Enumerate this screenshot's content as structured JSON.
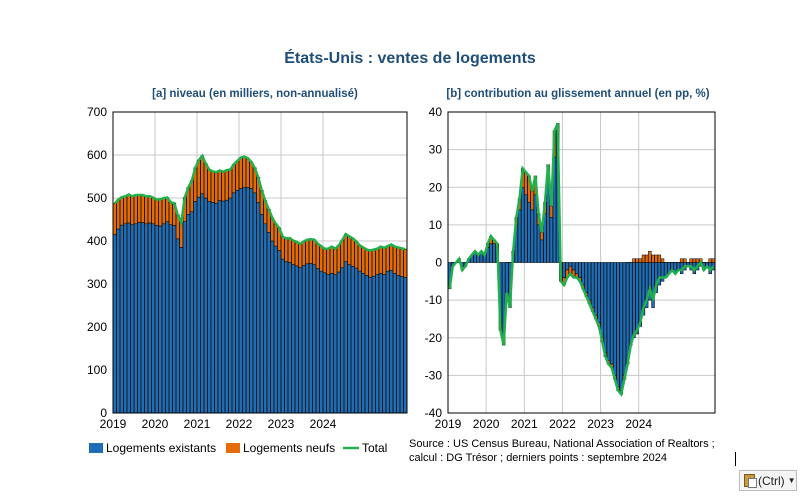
{
  "figure": {
    "title": "États-Unis : ventes de logements",
    "legend": {
      "existing": "Logements existants",
      "new": "Logements neufs",
      "total": "Total"
    },
    "source_line1": "Source : US Census Bureau, National Association of Realtors ;",
    "source_line2": "calcul : DG Trésor ; derniers points : septembre 2024",
    "colors": {
      "existing": "#1f6eb5",
      "new": "#e36c0a",
      "total": "#21b04b",
      "title": "#1f4e79"
    }
  },
  "chart_data": [
    {
      "id": "a",
      "type": "bar",
      "stacked": true,
      "title": "[a] niveau (en milliers, non-annualisé)",
      "xlabel": "",
      "ylabel": "",
      "ylim": [
        0,
        700
      ],
      "yticks": [
        "0",
        "100",
        "200",
        "300",
        "400",
        "500",
        "600",
        "700"
      ],
      "xticks": [
        "2019",
        "2020",
        "2021",
        "2022",
        "2023",
        "2024"
      ],
      "period": "2019-01 to 2024-09 (monthly)",
      "series": [
        {
          "name": "Logements existants",
          "values": [
            415,
            428,
            437,
            440,
            442,
            438,
            440,
            443,
            443,
            440,
            442,
            440,
            436,
            435,
            440,
            445,
            438,
            436,
            405,
            385,
            445,
            462,
            468,
            492,
            502,
            510,
            500,
            492,
            490,
            488,
            494,
            493,
            495,
            500,
            512,
            518,
            522,
            524,
            525,
            522,
            512,
            490,
            462,
            440,
            420,
            400,
            388,
            378,
            358,
            352,
            350,
            345,
            342,
            338,
            343,
            347,
            348,
            345,
            336,
            330,
            326,
            322,
            325,
            322,
            328,
            338,
            352,
            345,
            341,
            337,
            330,
            325,
            320,
            316,
            318,
            322,
            325,
            322,
            330,
            332,
            325,
            320,
            318,
            315
          ]
        },
        {
          "name": "Logements neufs",
          "values": [
            72,
            68,
            65,
            64,
            66,
            66,
            67,
            64,
            64,
            64,
            62,
            61,
            60,
            62,
            60,
            56,
            52,
            52,
            56,
            58,
            56,
            62,
            72,
            78,
            86,
            88,
            80,
            74,
            72,
            72,
            70,
            68,
            70,
            66,
            66,
            68,
            72,
            72,
            68,
            62,
            58,
            58,
            56,
            54,
            54,
            54,
            52,
            52,
            52,
            54,
            57,
            56,
            56,
            55,
            56,
            56,
            56,
            58,
            58,
            58,
            56,
            60,
            62,
            60,
            62,
            64,
            64,
            66,
            65,
            62,
            60,
            60,
            60,
            62,
            62,
            60,
            62,
            62,
            58,
            60,
            62,
            65,
            65,
            66
          ]
        },
        {
          "name": "Total",
          "values": [
            487,
            496,
            502,
            504,
            508,
            504,
            507,
            507,
            507,
            504,
            504,
            501,
            496,
            497,
            500,
            501,
            490,
            488,
            461,
            443,
            501,
            524,
            540,
            570,
            588,
            598,
            580,
            566,
            562,
            560,
            564,
            561,
            565,
            566,
            578,
            586,
            594,
            596,
            593,
            584,
            570,
            548,
            518,
            494,
            474,
            454,
            440,
            430,
            410,
            406,
            407,
            401,
            398,
            393,
            399,
            403,
            404,
            403,
            394,
            388,
            382,
            382,
            387,
            382,
            390,
            402,
            416,
            411,
            406,
            399,
            390,
            385,
            380,
            378,
            380,
            382,
            387,
            384,
            388,
            392,
            387,
            385,
            383,
            381
          ]
        }
      ]
    },
    {
      "id": "b",
      "type": "bar",
      "stacked": true,
      "title": "[b] contribution au glissement annuel (en pp, %)",
      "xlabel": "",
      "ylabel": "",
      "ylim": [
        -40,
        40
      ],
      "yticks": [
        "-40",
        "-30",
        "-20",
        "-10",
        "0",
        "10",
        "20",
        "30",
        "40"
      ],
      "xticks": [
        "2019",
        "2020",
        "2021",
        "2022",
        "2023",
        "2024"
      ],
      "period": "2019-01 to 2024-09 (monthly)",
      "series": [
        {
          "name": "Logements existants",
          "values": [
            -6,
            -1,
            0,
            1,
            -1,
            -1,
            1,
            2,
            3,
            2,
            3,
            2,
            4,
            5,
            5,
            4,
            -16,
            -20,
            -8,
            -12,
            2,
            10,
            14,
            20,
            18,
            16,
            14,
            18,
            10,
            6,
            13,
            22,
            12,
            28,
            35,
            -2,
            -4,
            -2,
            -1,
            -2,
            -3,
            -4,
            -6,
            -8,
            -10,
            -12,
            -14,
            -16,
            -20,
            -24,
            -26,
            -27,
            -30,
            -33,
            -34,
            -30,
            -27,
            -22,
            -20,
            -19,
            -17,
            -14,
            -12,
            -10,
            -12,
            -8,
            -6,
            -5,
            -4,
            -3,
            -2,
            -3,
            -2,
            -3,
            -2,
            -1,
            -2,
            -3,
            -2,
            -1,
            -2,
            -1,
            -3,
            -2
          ]
        },
        {
          "name": "Logements neufs",
          "values": [
            -1,
            0,
            0,
            0,
            -1,
            0,
            0,
            0,
            0,
            0,
            0,
            0,
            1,
            2,
            1,
            1,
            -2,
            -2,
            0,
            0,
            1,
            2,
            3,
            5,
            6,
            7,
            5,
            5,
            3,
            2,
            3,
            4,
            3,
            7,
            2,
            -3,
            -2,
            -2,
            -2,
            -2,
            -1,
            -1,
            -1,
            -1,
            -1,
            -1,
            -1,
            -1,
            -1,
            -1,
            -1,
            -1,
            -1,
            -1,
            -1,
            -1,
            0,
            0,
            1,
            1,
            1,
            2,
            2,
            3,
            2,
            2,
            2,
            1,
            0,
            0,
            0,
            0,
            0,
            1,
            1,
            0,
            1,
            1,
            1,
            1,
            0,
            0,
            1,
            1
          ]
        },
        {
          "name": "Total",
          "values": [
            -7,
            -1,
            0,
            1,
            -2,
            -1,
            1,
            2,
            3,
            2,
            3,
            2,
            5,
            7,
            6,
            5,
            -18,
            -22,
            -8,
            -12,
            3,
            12,
            17,
            25,
            24,
            23,
            19,
            23,
            13,
            8,
            16,
            26,
            15,
            35,
            37,
            -5,
            -6,
            -4,
            -3,
            -4,
            -4,
            -5,
            -7,
            -9,
            -11,
            -13,
            -15,
            -17,
            -21,
            -25,
            -27,
            -28,
            -31,
            -34,
            -35,
            -31,
            -27,
            -22,
            -19,
            -18,
            -16,
            -12,
            -10,
            -7,
            -10,
            -6,
            -4,
            -4,
            -4,
            -3,
            -2,
            -3,
            -2,
            -2,
            -1,
            -1,
            -1,
            -2,
            -1,
            0,
            -2,
            -1,
            -2,
            -1
          ]
        }
      ]
    }
  ],
  "ui": {
    "paste_options_label": "(Ctrl)"
  }
}
